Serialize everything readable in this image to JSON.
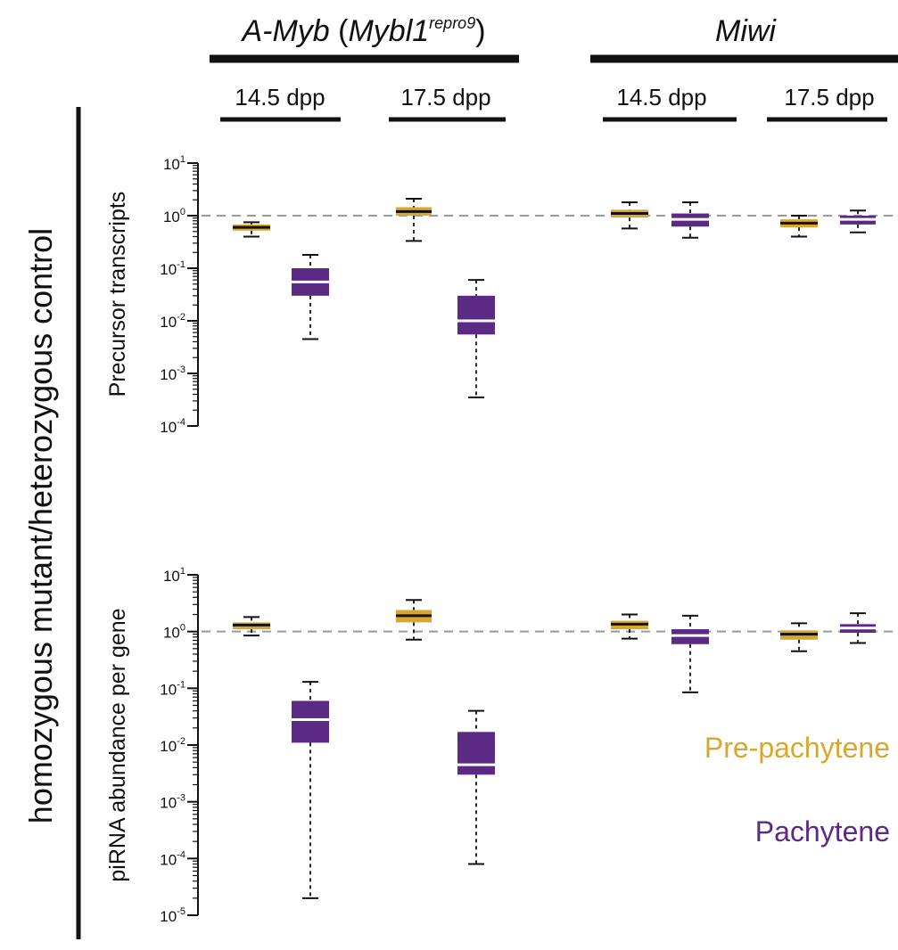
{
  "title": {
    "left_group": "A-Myb",
    "left_group_paren_open": " (",
    "left_group_gene": "Mybl1",
    "left_group_allele": "repro9",
    "left_group_paren_close": ")",
    "right_group": "Miwi"
  },
  "timepoints": [
    "14.5 dpp",
    "17.5 dpp",
    "14.5 dpp",
    "17.5 dpp"
  ],
  "outer_ylabel": "homozygous mutant/heterozygous control",
  "legend": [
    {
      "label": "Pre-pachytene",
      "color": "#D9A72E"
    },
    {
      "label": "Pachytene",
      "color": "#5B2A84"
    }
  ],
  "colors": {
    "pre": "#D9A72E",
    "pach": "#5B2A84",
    "reference_line": "#999999"
  },
  "chart_data": [
    {
      "type": "box",
      "ylabel": "Precursor transcripts",
      "yscale": "log",
      "ylim": [
        0.0001,
        10
      ],
      "yticks": [
        {
          "base": "10",
          "exp": "1",
          "value": 10
        },
        {
          "base": "10",
          "exp": "0",
          "value": 1
        },
        {
          "base": "10",
          "exp": "-1",
          "value": 0.1
        },
        {
          "base": "10",
          "exp": "-2",
          "value": 0.01
        },
        {
          "base": "10",
          "exp": "-3",
          "value": 0.001
        },
        {
          "base": "10",
          "exp": "-4",
          "value": 0.0001
        }
      ],
      "reference_line": 1,
      "series": [
        {
          "group": "A-Myb",
          "time": "14.5 dpp",
          "stage": "Pre-pachytene",
          "whisker_low": 0.4,
          "q1": 0.52,
          "median": 0.6,
          "q3": 0.68,
          "whisker_high": 0.75
        },
        {
          "group": "A-Myb",
          "time": "14.5 dpp",
          "stage": "Pachytene",
          "whisker_low": 0.0045,
          "q1": 0.03,
          "median": 0.055,
          "q3": 0.1,
          "whisker_high": 0.18
        },
        {
          "group": "A-Myb",
          "time": "17.5 dpp",
          "stage": "Pre-pachytene",
          "whisker_low": 0.33,
          "q1": 1.0,
          "median": 1.2,
          "q3": 1.45,
          "whisker_high": 2.1
        },
        {
          "group": "A-Myb",
          "time": "17.5 dpp",
          "stage": "Pachytene",
          "whisker_low": 0.00035,
          "q1": 0.0055,
          "median": 0.01,
          "q3": 0.03,
          "whisker_high": 0.06
        },
        {
          "group": "Miwi",
          "time": "14.5 dpp",
          "stage": "Pre-pachytene",
          "whisker_low": 0.57,
          "q1": 0.92,
          "median": 1.1,
          "q3": 1.3,
          "whisker_high": 1.8
        },
        {
          "group": "Miwi",
          "time": "14.5 dpp",
          "stage": "Pachytene",
          "whisker_low": 0.38,
          "q1": 0.62,
          "median": 0.85,
          "q3": 1.1,
          "whisker_high": 1.8
        },
        {
          "group": "Miwi",
          "time": "17.5 dpp",
          "stage": "Pre-pachytene",
          "whisker_low": 0.4,
          "q1": 0.6,
          "median": 0.72,
          "q3": 0.85,
          "whisker_high": 1.0
        },
        {
          "group": "Miwi",
          "time": "17.5 dpp",
          "stage": "Pachytene",
          "whisker_low": 0.48,
          "q1": 0.68,
          "median": 0.85,
          "q3": 1.0,
          "whisker_high": 1.25
        }
      ]
    },
    {
      "type": "box",
      "ylabel": "piRNA abundance per gene",
      "yscale": "log",
      "ylim": [
        1e-05,
        10
      ],
      "yticks": [
        {
          "base": "10",
          "exp": "1",
          "value": 10
        },
        {
          "base": "10",
          "exp": "0",
          "value": 1
        },
        {
          "base": "10",
          "exp": "-1",
          "value": 0.1
        },
        {
          "base": "10",
          "exp": "-2",
          "value": 0.01
        },
        {
          "base": "10",
          "exp": "-3",
          "value": 0.001
        },
        {
          "base": "10",
          "exp": "-4",
          "value": 0.0001
        },
        {
          "base": "10",
          "exp": "-5",
          "value": 1e-05
        }
      ],
      "reference_line": 1,
      "series": [
        {
          "group": "A-Myb",
          "time": "14.5 dpp",
          "stage": "Pre-pachytene",
          "whisker_low": 0.85,
          "q1": 1.1,
          "median": 1.3,
          "q3": 1.45,
          "whisker_high": 1.8
        },
        {
          "group": "A-Myb",
          "time": "14.5 dpp",
          "stage": "Pachytene",
          "whisker_low": 2e-05,
          "q1": 0.011,
          "median": 0.028,
          "q3": 0.06,
          "whisker_high": 0.13
        },
        {
          "group": "A-Myb",
          "time": "17.5 dpp",
          "stage": "Pre-pachytene",
          "whisker_low": 0.72,
          "q1": 1.45,
          "median": 1.9,
          "q3": 2.4,
          "whisker_high": 3.6
        },
        {
          "group": "A-Myb",
          "time": "17.5 dpp",
          "stage": "Pachytene",
          "whisker_low": 8e-05,
          "q1": 0.003,
          "median": 0.0045,
          "q3": 0.017,
          "whisker_high": 0.04
        },
        {
          "group": "Miwi",
          "time": "14.5 dpp",
          "stage": "Pre-pachytene",
          "whisker_low": 0.75,
          "q1": 1.1,
          "median": 1.35,
          "q3": 1.55,
          "whisker_high": 2.0
        },
        {
          "group": "Miwi",
          "time": "14.5 dpp",
          "stage": "Pachytene",
          "whisker_low": 0.085,
          "q1": 0.6,
          "median": 0.85,
          "q3": 1.1,
          "whisker_high": 1.9
        },
        {
          "group": "Miwi",
          "time": "17.5 dpp",
          "stage": "Pre-pachytene",
          "whisker_low": 0.45,
          "q1": 0.72,
          "median": 0.9,
          "q3": 1.05,
          "whisker_high": 1.4
        },
        {
          "group": "Miwi",
          "time": "17.5 dpp",
          "stage": "Pachytene",
          "whisker_low": 0.63,
          "q1": 0.95,
          "median": 1.15,
          "q3": 1.35,
          "whisker_high": 2.1
        }
      ]
    }
  ]
}
